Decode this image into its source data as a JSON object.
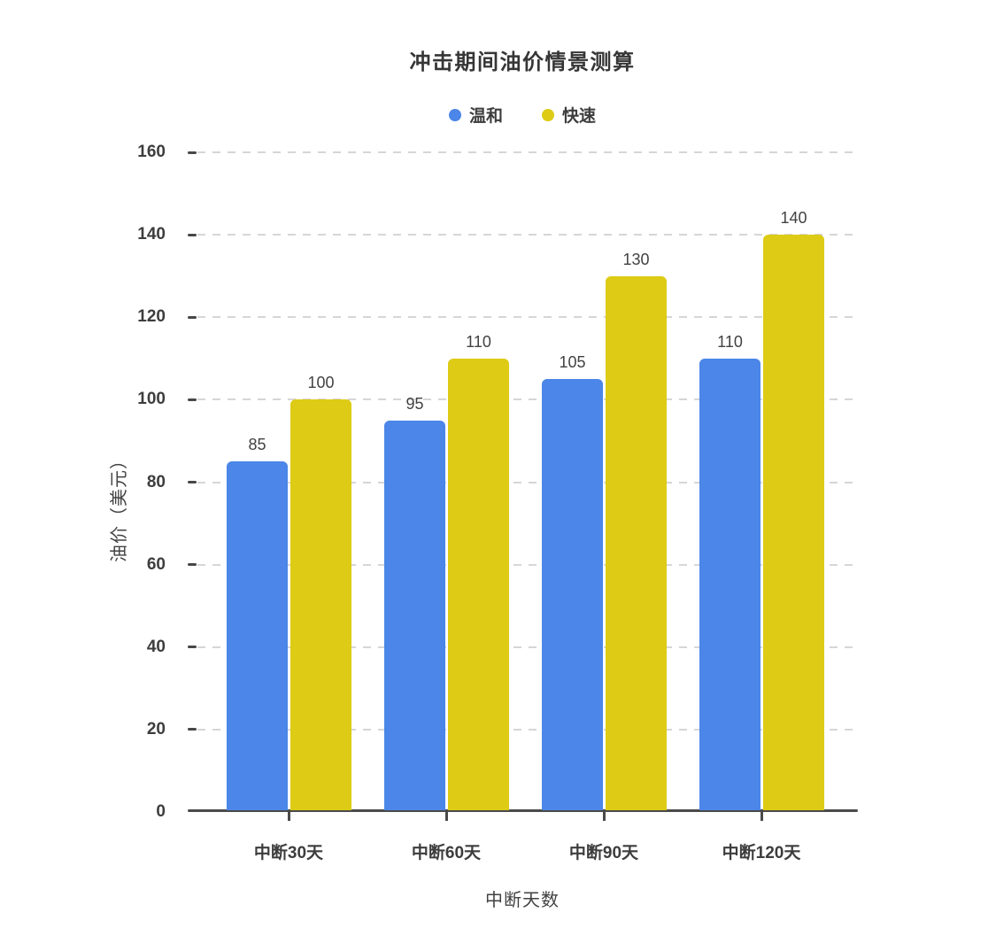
{
  "chart_data": {
    "type": "bar",
    "title": "冲击期间油价情景测算",
    "categories": [
      "中断30天",
      "中断60天",
      "中断90天",
      "中断120天"
    ],
    "series": [
      {
        "name": "温和",
        "color": "#4B86E8",
        "values": [
          85,
          95,
          105,
          110
        ]
      },
      {
        "name": "快速",
        "color": "#DDCB15",
        "values": [
          100,
          110,
          130,
          140
        ]
      }
    ],
    "xlabel": "中断天数",
    "ylabel": "油价（美元）",
    "ylim": [
      0,
      160
    ],
    "yticks": [
      0,
      20,
      40,
      60,
      80,
      100,
      120,
      140,
      160
    ],
    "grid": "horizontal-dashed",
    "legend_position": "top",
    "value_labels": true
  },
  "style": {
    "background": "#FFFFFF",
    "title_color": "#363636",
    "label_color": "#3D3D3D",
    "value_label_color": "#424242",
    "grid_color": "#D6D6D6",
    "axis_color": "#4A4A4A"
  }
}
